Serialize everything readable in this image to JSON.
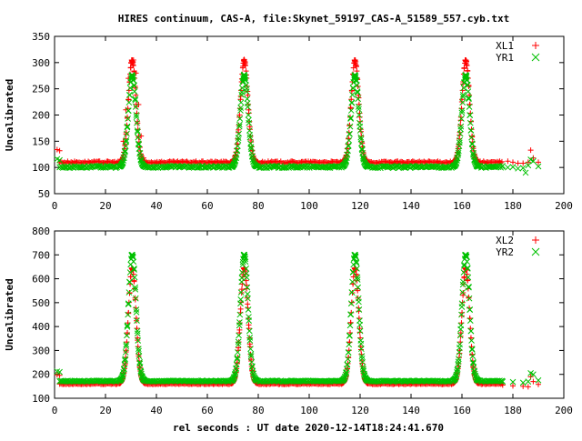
{
  "figure": {
    "title": "HIRES continuum, CAS-A, file:Skynet_59197_CAS-A_51589_557.cyb.txt",
    "xlabel": "rel seconds : UT date 2020-12-14T18:24:41.670"
  },
  "chart_data": [
    {
      "type": "scatter",
      "title": "HIRES continuum, CAS-A, file:Skynet_59197_CAS-A_51589_557.cyb.txt",
      "xlabel": "",
      "ylabel": "Uncalibrated",
      "xlim": [
        0,
        200
      ],
      "ylim": [
        50,
        350
      ],
      "x_ticks": [
        0,
        20,
        40,
        60,
        80,
        100,
        120,
        140,
        160,
        180,
        200
      ],
      "y_ticks": [
        50,
        100,
        150,
        200,
        250,
        300,
        350
      ],
      "grid": false,
      "legend_position": "top-right",
      "peak_centers": [
        30.5,
        74.5,
        118,
        161.5
      ],
      "series": [
        {
          "name": "XL1",
          "marker": "plus",
          "color": "#ff0000",
          "baseline": 110,
          "peak": 305,
          "segments": [
            {
              "x": [
                1,
                2
              ],
              "y": [
                134,
                132
              ]
            },
            {
              "x": [
                27,
                28,
                29,
                30,
                31,
                32,
                33,
                34,
                35
              ],
              "y": [
                150,
                210,
                270,
                300,
                305,
                280,
                220,
                160,
                118
              ]
            },
            {
              "x": [
                178,
                180,
                182,
                184,
                186,
                187,
                188,
                190
              ],
              "y": [
                112,
                110,
                108,
                108,
                110,
                133,
                118,
                110
              ]
            }
          ]
        },
        {
          "name": "YR1",
          "marker": "cross",
          "color": "#00c000",
          "baseline": 101,
          "peak": 276,
          "segments": [
            {
              "x": [
                1,
                2
              ],
              "y": [
                116,
                114
              ]
            },
            {
              "x": [
                176,
                178,
                180,
                182,
                184,
                185,
                186,
                187,
                188,
                190
              ],
              "y": [
                103,
                100,
                101,
                98,
                99,
                90,
                104,
                115,
                112,
                102
              ]
            }
          ]
        }
      ]
    },
    {
      "type": "scatter",
      "title": "",
      "xlabel": "rel seconds : UT date 2020-12-14T18:24:41.670",
      "ylabel": "Uncalibrated",
      "xlim": [
        0,
        200
      ],
      "ylim": [
        100,
        800
      ],
      "x_ticks": [
        0,
        20,
        40,
        60,
        80,
        100,
        120,
        140,
        160,
        180,
        200
      ],
      "y_ticks": [
        100,
        200,
        300,
        400,
        500,
        600,
        700,
        800
      ],
      "grid": false,
      "legend_position": "top-right",
      "peak_centers": [
        30.5,
        74.5,
        118,
        161.5
      ],
      "series": [
        {
          "name": "XL2",
          "marker": "plus",
          "color": "#ff0000",
          "baseline": 160,
          "peak": 645,
          "segments": [
            {
              "x": [
                1,
                2
              ],
              "y": [
                198,
                196
              ]
            },
            {
              "x": [
                176,
                180,
                184,
                186,
                187,
                188,
                190
              ],
              "y": [
                155,
                152,
                150,
                148,
                190,
                170,
                158
              ]
            }
          ]
        },
        {
          "name": "YR2",
          "marker": "cross",
          "color": "#00c000",
          "baseline": 172,
          "peak": 700,
          "segments": [
            {
              "x": [
                1,
                2
              ],
              "y": [
                212,
                210
              ]
            },
            {
              "x": [
                176,
                180,
                184,
                186,
                187,
                188,
                190
              ],
              "y": [
                170,
                168,
                165,
                170,
                205,
                200,
                175
              ]
            }
          ]
        }
      ]
    }
  ]
}
